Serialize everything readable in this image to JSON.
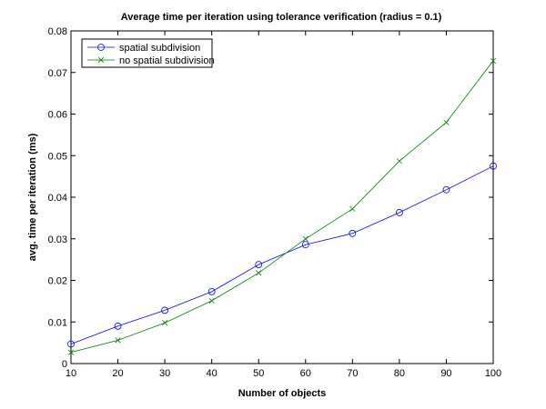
{
  "chart_data": {
    "type": "line",
    "title": "Average time per iteration using tolerance verification (radius = 0.1)",
    "xlabel": "Number of objects",
    "ylabel": "avg. time per iteration (ms)",
    "x": [
      10,
      20,
      30,
      40,
      50,
      60,
      70,
      80,
      90,
      100
    ],
    "xlim": [
      10,
      100
    ],
    "ylim": [
      0,
      0.08
    ],
    "xticks": [
      "10",
      "20",
      "30",
      "40",
      "50",
      "60",
      "70",
      "80",
      "90",
      "100"
    ],
    "yticks": [
      "0",
      "0.01",
      "0.02",
      "0.03",
      "0.04",
      "0.05",
      "0.06",
      "0.07",
      "0.08"
    ],
    "grid": false,
    "legend_position": "top-left",
    "series": [
      {
        "name": "spatial subdivision",
        "color": "#0000ff",
        "marker": "circle",
        "values": [
          0.0047,
          0.009,
          0.0128,
          0.0173,
          0.0238,
          0.0286,
          0.0313,
          0.0363,
          0.0418,
          0.0475
        ]
      },
      {
        "name": "no spatial subdivision",
        "color": "#008000",
        "marker": "x",
        "values": [
          0.0027,
          0.0056,
          0.0098,
          0.0151,
          0.0218,
          0.03,
          0.0372,
          0.0487,
          0.058,
          0.0728
        ]
      }
    ]
  }
}
